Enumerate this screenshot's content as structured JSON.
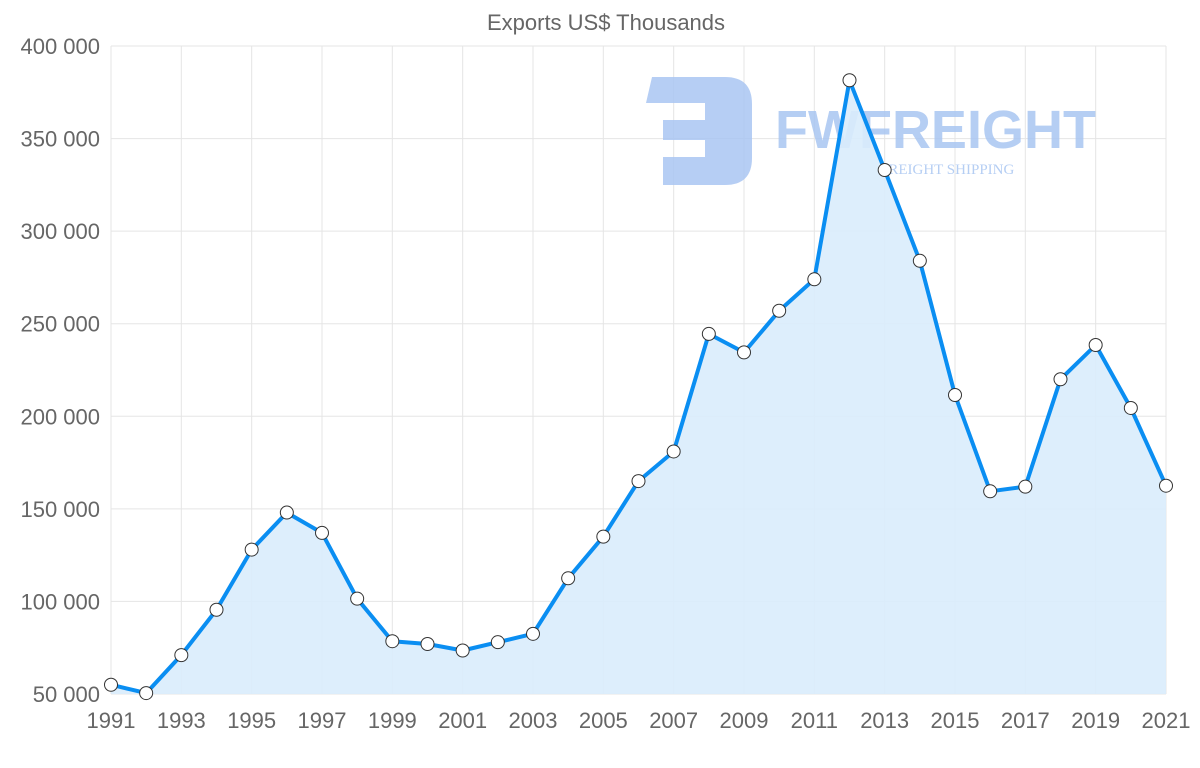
{
  "chart_data": {
    "type": "line",
    "title": "Exports US$ Thousands",
    "xlabel": "",
    "ylabel": "",
    "x": [
      1991,
      1992,
      1993,
      1994,
      1995,
      1996,
      1997,
      1998,
      1999,
      2000,
      2001,
      2002,
      2003,
      2004,
      2005,
      2006,
      2007,
      2008,
      2009,
      2010,
      2011,
      2012,
      2013,
      2014,
      2015,
      2016,
      2017,
      2018,
      2019,
      2020,
      2021
    ],
    "series": [
      {
        "name": "Exports US$ Thousands",
        "values": [
          55000,
          50500,
          71000,
          95500,
          128000,
          148000,
          137000,
          101500,
          78500,
          77000,
          73500,
          78000,
          82500,
          112500,
          135000,
          165000,
          181000,
          244500,
          234500,
          257000,
          274000,
          381500,
          333000,
          284000,
          211500,
          159500,
          162000,
          220000,
          238500,
          204500,
          162500
        ]
      }
    ],
    "xticks": [
      "1991",
      "1993",
      "1995",
      "1997",
      "1999",
      "2001",
      "2003",
      "2005",
      "2007",
      "2009",
      "2011",
      "2013",
      "2015",
      "2017",
      "2019",
      "2021"
    ],
    "yticks": [
      "50 000",
      "100 000",
      "150 000",
      "200 000",
      "250 000",
      "300 000",
      "350 000",
      "400 000"
    ],
    "ylim": [
      50000,
      400000
    ],
    "xlim": [
      1991,
      2021
    ],
    "grid": true,
    "legend": "none",
    "colors": {
      "line": "#0a8ef2",
      "fill": "#d9ecfc",
      "marker_fill": "#ffffff",
      "grid": "#e5e5e5",
      "watermark": "#a9c6f2"
    },
    "watermark": {
      "brand": "FWFREIGHT",
      "tagline": "FREIGHT SHIPPING"
    }
  }
}
